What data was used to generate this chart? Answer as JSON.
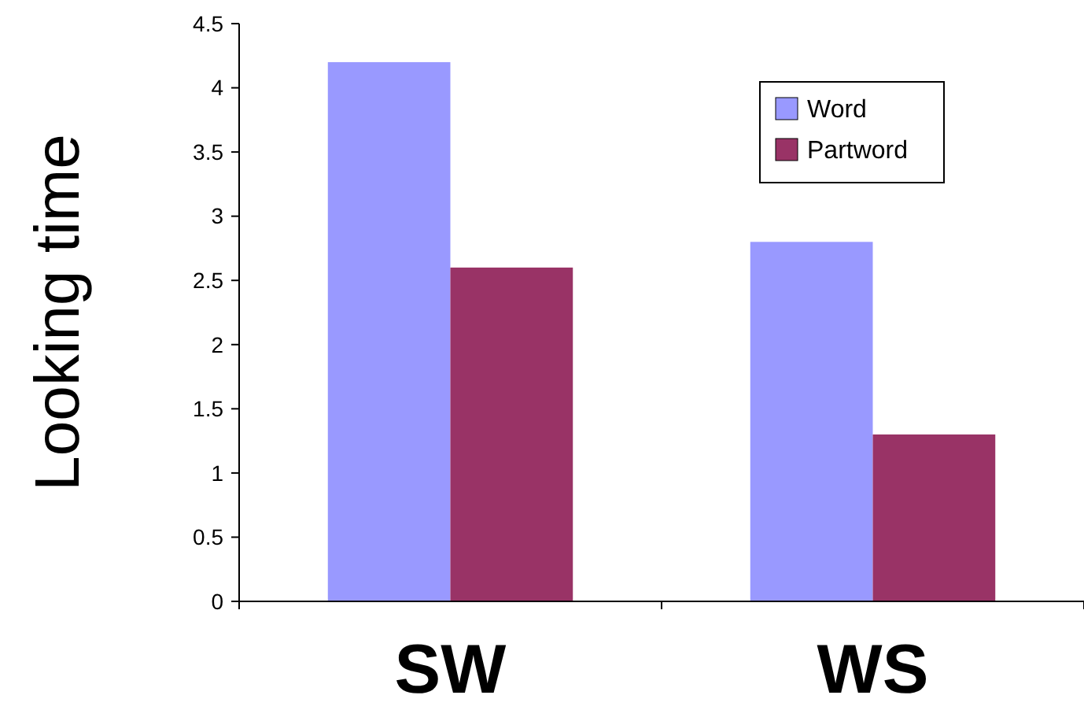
{
  "chart_data": {
    "type": "bar",
    "ylabel": "Looking time",
    "categories": [
      "SW",
      "WS"
    ],
    "series": [
      {
        "name": "Word",
        "color": "#9999ff",
        "values": [
          4.2,
          2.8
        ]
      },
      {
        "name": "Partword",
        "color": "#993366",
        "values": [
          2.6,
          1.3
        ]
      }
    ],
    "ylim": [
      0,
      4.5
    ],
    "yticks": [
      0,
      0.5,
      1,
      1.5,
      2,
      2.5,
      3,
      3.5,
      4,
      4.5
    ],
    "grid": false,
    "legend": "top right"
  }
}
